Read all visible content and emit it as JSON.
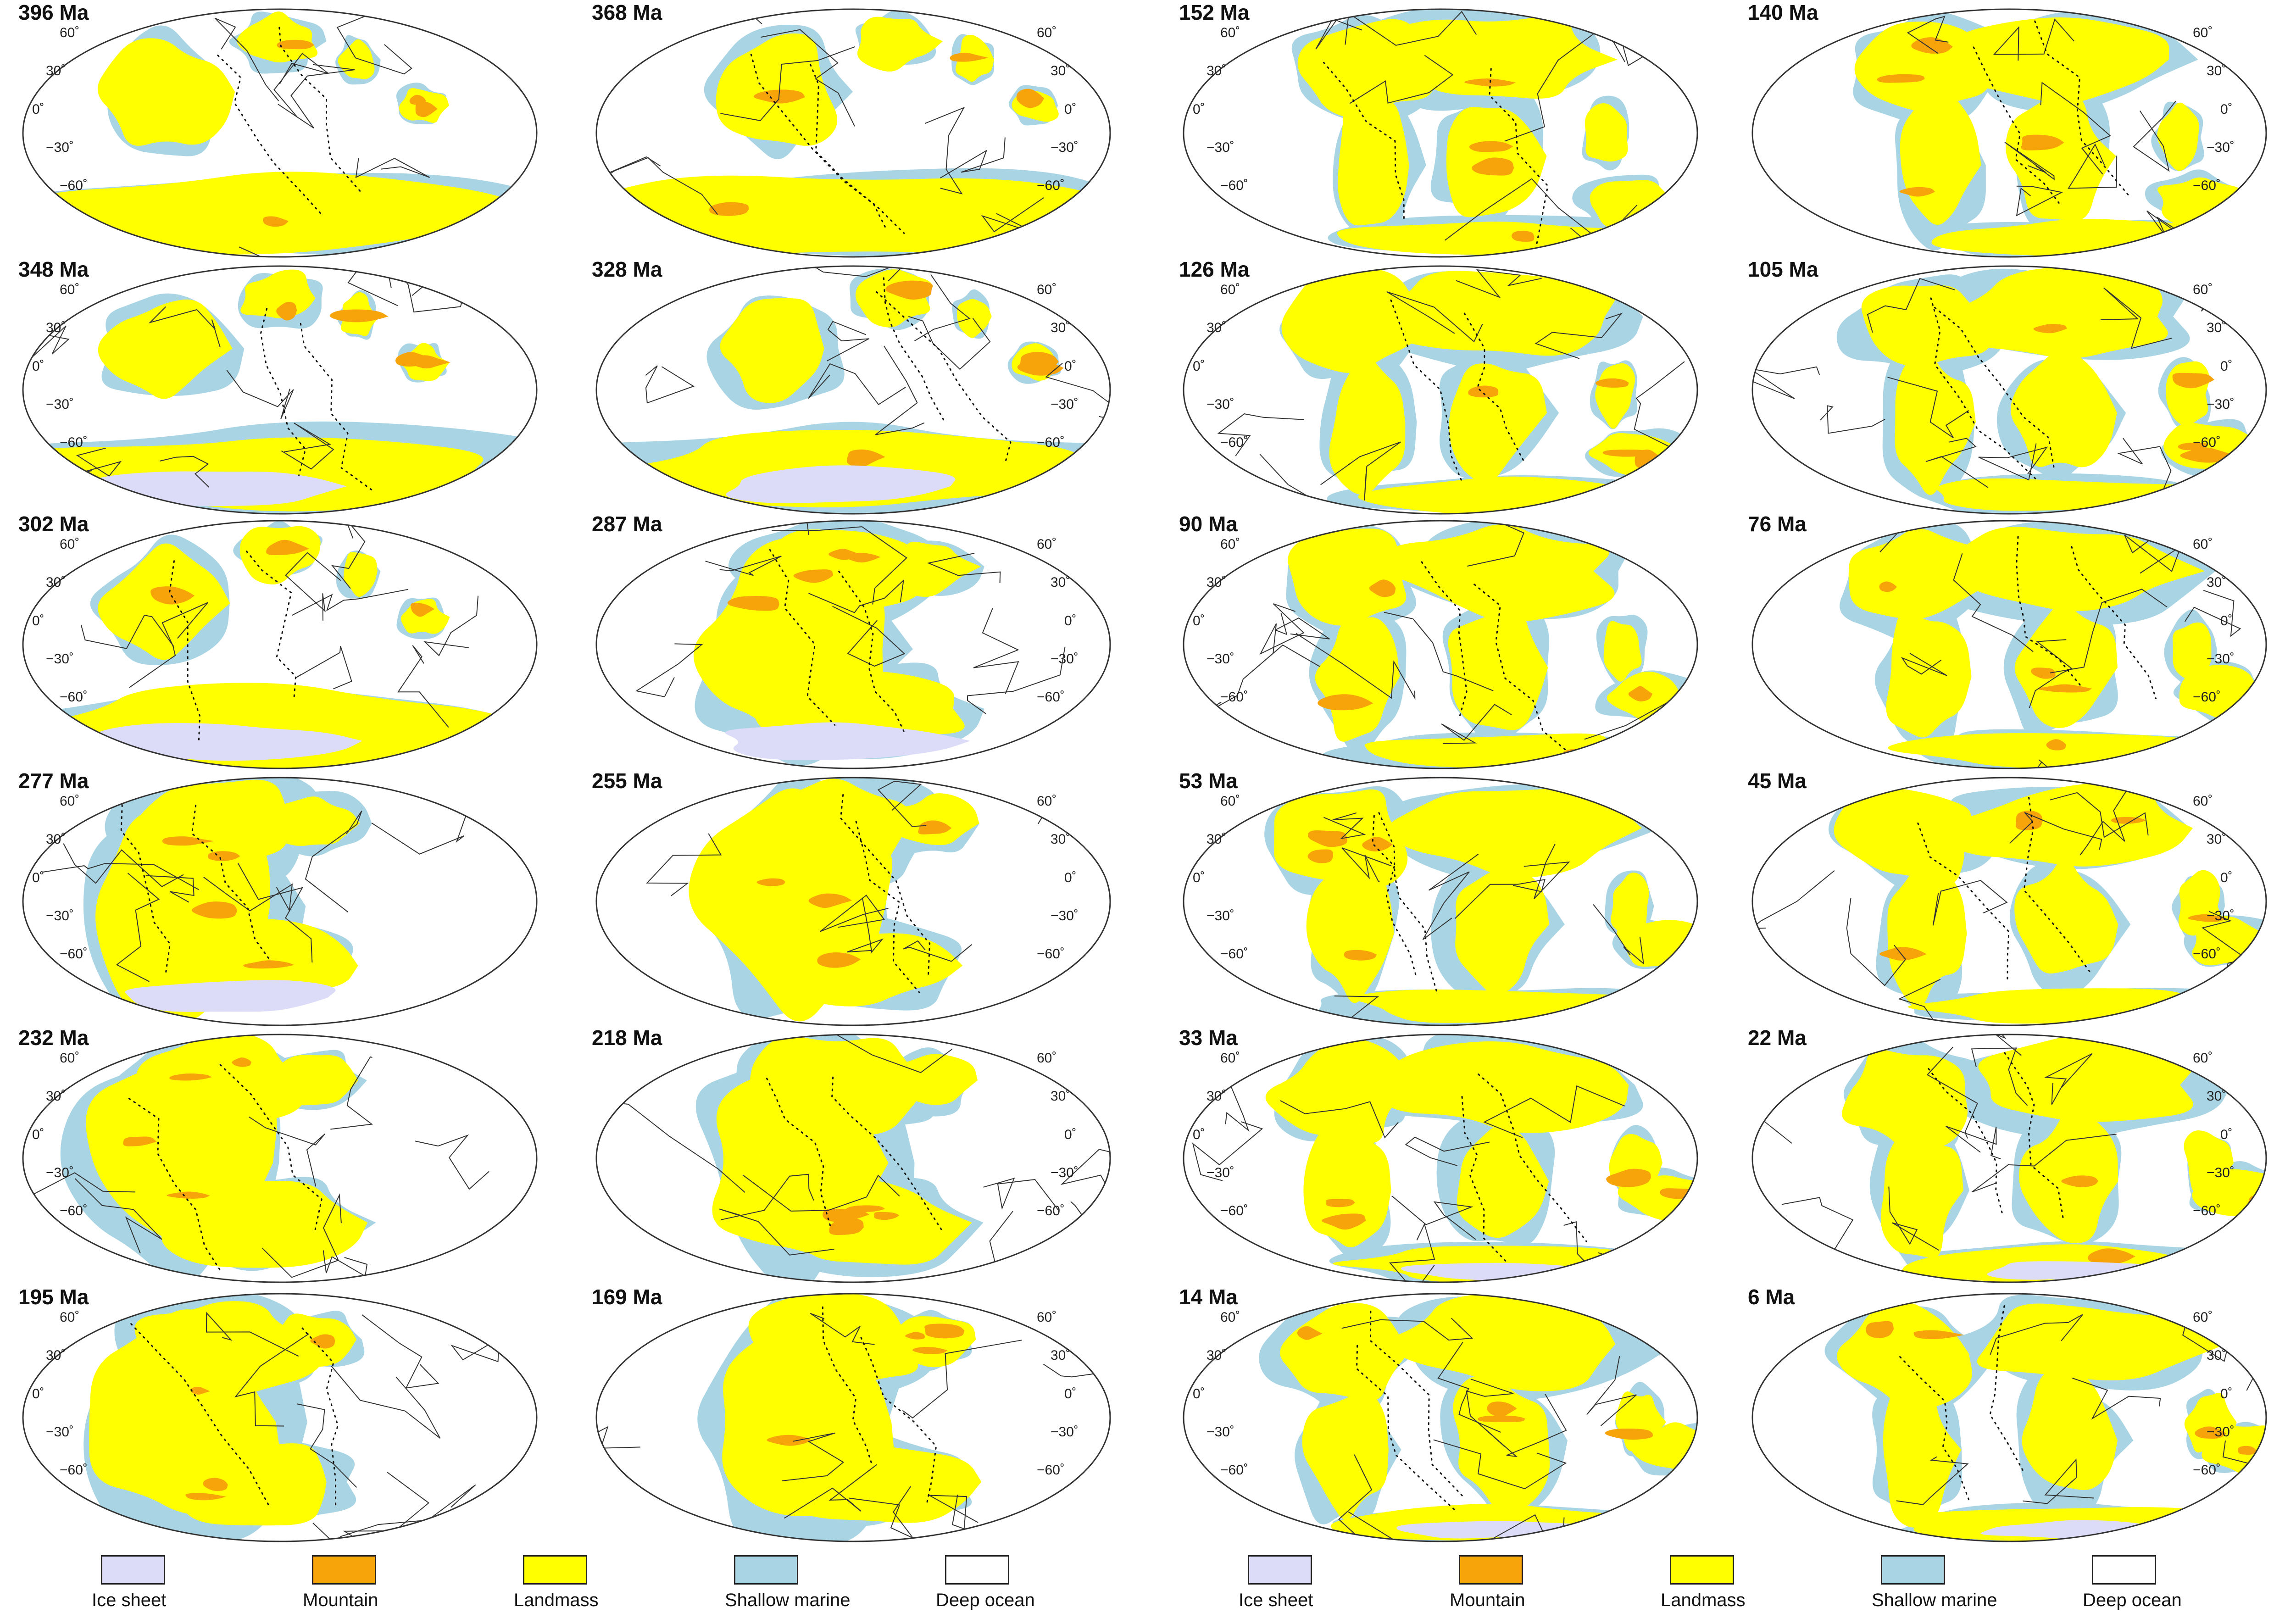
{
  "legend_colors": {
    "ice_sheet": "#dcdcf8",
    "mountain": "#f7a30a",
    "landmass": "#ffff00",
    "shallow_marine": "#a8d4e4",
    "deep_ocean": "#ffffff"
  },
  "latitude_ticks": [
    "60˚",
    "30˚",
    "0˚",
    "−30˚",
    "−60˚"
  ],
  "map_panels": [
    {
      "age": "396 Ma"
    },
    {
      "age": "368 Ma"
    },
    {
      "age": "152 Ma"
    },
    {
      "age": "140 Ma"
    },
    {
      "age": "348 Ma"
    },
    {
      "age": "328 Ma"
    },
    {
      "age": "126 Ma"
    },
    {
      "age": "105 Ma"
    },
    {
      "age": "302 Ma"
    },
    {
      "age": "287 Ma"
    },
    {
      "age": "90 Ma"
    },
    {
      "age": "76 Ma"
    },
    {
      "age": "277 Ma"
    },
    {
      "age": "255 Ma"
    },
    {
      "age": "53 Ma"
    },
    {
      "age": "45 Ma"
    },
    {
      "age": "232 Ma"
    },
    {
      "age": "218 Ma"
    },
    {
      "age": "33 Ma"
    },
    {
      "age": "22 Ma"
    },
    {
      "age": "195 Ma"
    },
    {
      "age": "169 Ma"
    },
    {
      "age": "14 Ma"
    },
    {
      "age": "6 Ma"
    }
  ],
  "legend_left": [
    {
      "label": "Ice sheet",
      "color": "#dcdcf8"
    },
    {
      "label": "Mountain",
      "color": "#f7a30a"
    },
    {
      "label": "Landmass",
      "color": "#ffff00"
    },
    {
      "label": "Shallow marine",
      "color": "#a8d4e4"
    },
    {
      "label": "Deep ocean",
      "color": "#ffffff"
    }
  ],
  "legend_right": [
    {
      "label": "Ice sheet",
      "color": "#dcdcf8"
    },
    {
      "label": "Mountain",
      "color": "#f7a30a"
    },
    {
      "label": "Landmass",
      "color": "#ffff00"
    },
    {
      "label": "Shallow marine",
      "color": "#a8d4e4"
    },
    {
      "label": "Deep ocean",
      "color": "#ffffff"
    }
  ]
}
